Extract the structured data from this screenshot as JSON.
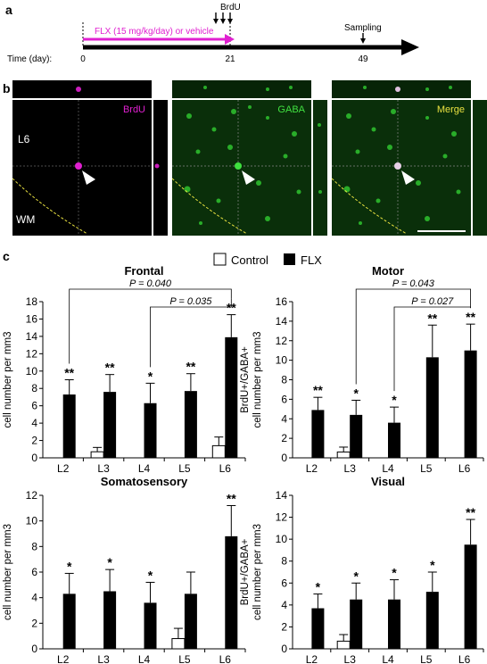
{
  "panel_a": {
    "label": "a",
    "treatment_text": "FLX (15 mg/kg/day) or vehicle",
    "brdu_label": "BrdU",
    "sampling_label": "Sampling",
    "time_label": "Time (day):",
    "day_start": "0",
    "day_mid": "21",
    "day_end": "49",
    "colors": {
      "treatment": "#e020d0",
      "axis": "#000000"
    }
  },
  "panel_b": {
    "label": "b",
    "images": [
      {
        "title": "BrdU",
        "title_color": "#e020d0",
        "layer": "L6",
        "matter": "WM"
      },
      {
        "title": "GABA",
        "title_color": "#40e040"
      },
      {
        "title": "Merge",
        "title_color": "#e8e040"
      }
    ]
  },
  "panel_c": {
    "label": "c",
    "legend": {
      "control": "Control",
      "flx": "FLX"
    },
    "y_label_line1": "BrdU+/GABA+",
    "y_label_line2": "cell number per mm3"
  },
  "chart_data": [
    {
      "type": "bar",
      "title": "Frontal",
      "categories": [
        "L2",
        "L3",
        "L4",
        "L5",
        "L6"
      ],
      "ylim": [
        0,
        18
      ],
      "yticks": [
        0,
        2,
        4,
        6,
        8,
        10,
        12,
        14,
        16,
        18
      ],
      "series": [
        {
          "name": "Control",
          "values": [
            0,
            0.7,
            0,
            0,
            1.4
          ],
          "errors": [
            0,
            0.5,
            0,
            0,
            1.0
          ]
        },
        {
          "name": "FLX",
          "values": [
            7.3,
            7.6,
            6.3,
            7.7,
            13.9
          ],
          "errors": [
            1.7,
            2.0,
            2.3,
            2.0,
            2.6
          ]
        }
      ],
      "significance": [
        "**",
        "**",
        "*",
        "**",
        "**"
      ],
      "comparisons": [
        {
          "from": "L2",
          "to": "L6",
          "p": "P = 0.040"
        },
        {
          "from": "L4",
          "to": "L6",
          "p": "P = 0.035"
        }
      ]
    },
    {
      "type": "bar",
      "title": "Motor",
      "categories": [
        "L2",
        "L3",
        "L4",
        "L5",
        "L6"
      ],
      "ylim": [
        0,
        16
      ],
      "yticks": [
        0,
        2,
        4,
        6,
        8,
        10,
        12,
        14,
        16
      ],
      "series": [
        {
          "name": "Control",
          "values": [
            0,
            0.6,
            0,
            0,
            0
          ],
          "errors": [
            0,
            0.5,
            0,
            0,
            0
          ]
        },
        {
          "name": "FLX",
          "values": [
            4.9,
            4.4,
            3.6,
            10.3,
            11.0
          ],
          "errors": [
            1.3,
            1.5,
            1.6,
            3.3,
            2.7
          ]
        }
      ],
      "significance": [
        "**",
        "*",
        "*",
        "**",
        "**"
      ],
      "comparisons": [
        {
          "from": "L3",
          "to": "L6",
          "p": "P = 0.043"
        },
        {
          "from": "L4",
          "to": "L6",
          "p": "P = 0.027"
        }
      ]
    },
    {
      "type": "bar",
      "title": "Somatosensory",
      "categories": [
        "L2",
        "L3",
        "L4",
        "L5",
        "L6"
      ],
      "ylim": [
        0,
        12
      ],
      "yticks": [
        0,
        2,
        4,
        6,
        8,
        10,
        12
      ],
      "series": [
        {
          "name": "Control",
          "values": [
            0,
            0,
            0,
            0.8,
            0
          ],
          "errors": [
            0,
            0,
            0,
            0.8,
            0
          ]
        },
        {
          "name": "FLX",
          "values": [
            4.3,
            4.5,
            3.6,
            4.3,
            8.8
          ],
          "errors": [
            1.6,
            1.7,
            1.6,
            1.7,
            2.4
          ]
        }
      ],
      "significance": [
        "*",
        "*",
        "*",
        "",
        "**"
      ],
      "comparisons": []
    },
    {
      "type": "bar",
      "title": "Visual",
      "categories": [
        "L2",
        "L3",
        "L4",
        "L5",
        "L6"
      ],
      "ylim": [
        0,
        14
      ],
      "yticks": [
        0,
        2,
        4,
        6,
        8,
        10,
        12,
        14
      ],
      "series": [
        {
          "name": "Control",
          "values": [
            0,
            0.7,
            0,
            0,
            0
          ],
          "errors": [
            0,
            0.6,
            0,
            0,
            0
          ]
        },
        {
          "name": "FLX",
          "values": [
            3.7,
            4.5,
            4.5,
            5.2,
            9.5
          ],
          "errors": [
            1.3,
            1.5,
            1.8,
            1.8,
            2.3
          ]
        }
      ],
      "significance": [
        "*",
        "*",
        "*",
        "*",
        "**"
      ],
      "comparisons": []
    }
  ]
}
